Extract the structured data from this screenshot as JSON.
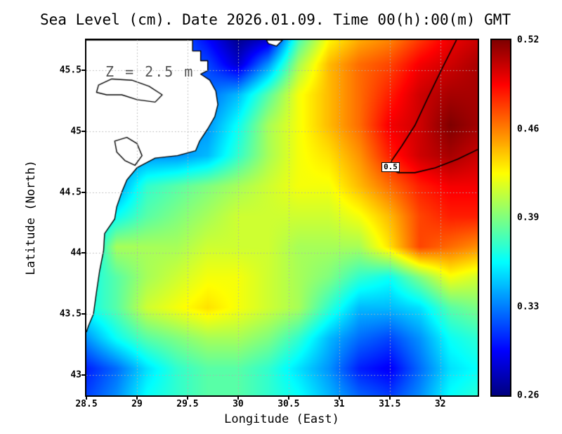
{
  "chart_data": {
    "type": "heatmap",
    "title": "Sea Level (cm). Date 2026.01.09. Time 00(h):00(m) GMT",
    "xlabel": "Longitude (East)",
    "ylabel": "Latitude (North)",
    "annotation": "Z = 2.5 m",
    "units": "cm",
    "grid": true,
    "lon_range": [
      28.5,
      32.37
    ],
    "lat_range": [
      42.83,
      45.75
    ],
    "value_range": [
      0.26,
      0.52
    ],
    "x_ticks": {
      "labels": [
        "28.5",
        "29",
        "29.5",
        "30",
        "30.5",
        "31",
        "31.5",
        "32"
      ],
      "values": [
        28.5,
        29,
        29.5,
        30,
        30.5,
        31,
        31.5,
        32
      ]
    },
    "y_ticks": {
      "labels": [
        "45.5",
        "45",
        "44.5",
        "44",
        "43.5",
        "43"
      ],
      "values": [
        45.5,
        45,
        44.5,
        44,
        43.5,
        43
      ]
    },
    "colorbar": {
      "labels": [
        "0.52",
        "0.46",
        "0.39",
        "0.33",
        "0.26"
      ],
      "min": 0.26,
      "max": 0.52,
      "colormap": "jet",
      "position": "right"
    },
    "lon": [
      28.5,
      28.8,
      29.1,
      29.4,
      29.7,
      30.0,
      30.3,
      30.6,
      30.9,
      31.2,
      31.5,
      31.8,
      32.1,
      32.4
    ],
    "lat": [
      45.8,
      45.55,
      45.3,
      45.05,
      44.8,
      44.55,
      44.3,
      44.05,
      43.8,
      43.55,
      43.3,
      43.05,
      42.8
    ],
    "values": [
      [
        0.33,
        0.33,
        0.33,
        0.32,
        0.29,
        0.26,
        0.27,
        0.37,
        0.42,
        0.44,
        0.45,
        0.47,
        0.49,
        0.5
      ],
      [
        0.33,
        0.33,
        0.33,
        0.32,
        0.31,
        0.28,
        0.33,
        0.4,
        0.44,
        0.46,
        0.47,
        0.49,
        0.5,
        0.51
      ],
      [
        0.33,
        0.33,
        0.33,
        0.33,
        0.32,
        0.34,
        0.38,
        0.42,
        0.44,
        0.46,
        0.48,
        0.5,
        0.51,
        0.51
      ],
      [
        0.33,
        0.33,
        0.33,
        0.33,
        0.33,
        0.36,
        0.4,
        0.42,
        0.44,
        0.46,
        0.49,
        0.5,
        0.52,
        0.51
      ],
      [
        0.33,
        0.33,
        0.33,
        0.33,
        0.34,
        0.37,
        0.4,
        0.42,
        0.43,
        0.45,
        0.48,
        0.5,
        0.51,
        0.5
      ],
      [
        0.33,
        0.33,
        0.37,
        0.38,
        0.39,
        0.4,
        0.41,
        0.42,
        0.42,
        0.44,
        0.46,
        0.48,
        0.49,
        0.49
      ],
      [
        0.34,
        0.36,
        0.38,
        0.39,
        0.4,
        0.41,
        0.41,
        0.41,
        0.41,
        0.42,
        0.44,
        0.47,
        0.48,
        0.48
      ],
      [
        0.34,
        0.4,
        0.4,
        0.4,
        0.41,
        0.41,
        0.41,
        0.4,
        0.4,
        0.4,
        0.43,
        0.47,
        0.46,
        0.45
      ],
      [
        0.36,
        0.38,
        0.4,
        0.41,
        0.42,
        0.42,
        0.41,
        0.4,
        0.39,
        0.37,
        0.36,
        0.39,
        0.42,
        0.41
      ],
      [
        0.36,
        0.38,
        0.41,
        0.42,
        0.43,
        0.42,
        0.41,
        0.4,
        0.37,
        0.34,
        0.34,
        0.35,
        0.38,
        0.39
      ],
      [
        0.33,
        0.36,
        0.38,
        0.39,
        0.4,
        0.4,
        0.39,
        0.37,
        0.34,
        0.32,
        0.31,
        0.33,
        0.36,
        0.37
      ],
      [
        0.3,
        0.32,
        0.35,
        0.37,
        0.38,
        0.38,
        0.37,
        0.35,
        0.33,
        0.3,
        0.29,
        0.32,
        0.35,
        0.36
      ],
      [
        0.31,
        0.33,
        0.36,
        0.37,
        0.38,
        0.38,
        0.37,
        0.36,
        0.34,
        0.32,
        0.31,
        0.33,
        0.36,
        0.37
      ]
    ],
    "contour": {
      "label": "0.5",
      "path": [
        [
          32.16,
          45.75
        ],
        [
          32.02,
          45.52
        ],
        [
          31.88,
          45.28
        ],
        [
          31.75,
          45.05
        ],
        [
          31.62,
          44.88
        ],
        [
          31.52,
          44.76
        ],
        [
          31.5,
          44.7
        ],
        [
          31.58,
          44.66
        ],
        [
          31.75,
          44.66
        ],
        [
          31.95,
          44.7
        ],
        [
          32.17,
          44.77
        ],
        [
          32.37,
          44.85
        ]
      ]
    },
    "coastline": [
      [
        28.5,
        45.75
      ],
      [
        29.55,
        45.75
      ],
      [
        29.55,
        45.66
      ],
      [
        29.63,
        45.66
      ],
      [
        29.63,
        45.58
      ],
      [
        29.7,
        45.58
      ],
      [
        29.7,
        45.5
      ],
      [
        29.63,
        45.47
      ],
      [
        29.72,
        45.42
      ],
      [
        29.78,
        45.33
      ],
      [
        29.8,
        45.22
      ],
      [
        29.77,
        45.12
      ],
      [
        29.7,
        45.02
      ],
      [
        29.62,
        44.92
      ],
      [
        29.58,
        44.84
      ],
      [
        29.4,
        44.8
      ],
      [
        29.18,
        44.78
      ],
      [
        29.0,
        44.7
      ],
      [
        28.9,
        44.6
      ],
      [
        28.85,
        44.5
      ],
      [
        28.8,
        44.38
      ],
      [
        28.78,
        44.28
      ],
      [
        28.68,
        44.16
      ],
      [
        28.67,
        44.02
      ],
      [
        28.63,
        43.85
      ],
      [
        28.6,
        43.68
      ],
      [
        28.57,
        43.5
      ],
      [
        28.52,
        43.4
      ],
      [
        28.5,
        43.35
      ]
    ],
    "islet": [
      [
        30.28,
        45.75
      ],
      [
        30.44,
        45.75
      ],
      [
        30.38,
        45.7
      ],
      [
        30.3,
        45.72
      ]
    ],
    "lakes": [
      [
        [
          28.62,
          45.38
        ],
        [
          28.75,
          45.43
        ],
        [
          28.95,
          45.42
        ],
        [
          29.12,
          45.37
        ],
        [
          29.25,
          45.3
        ],
        [
          29.18,
          45.24
        ],
        [
          29.0,
          45.26
        ],
        [
          28.85,
          45.3
        ],
        [
          28.7,
          45.3
        ],
        [
          28.6,
          45.32
        ]
      ],
      [
        [
          28.78,
          44.92
        ],
        [
          28.9,
          44.95
        ],
        [
          29.0,
          44.9
        ],
        [
          29.05,
          44.8
        ],
        [
          28.98,
          44.72
        ],
        [
          28.88,
          44.76
        ],
        [
          28.8,
          44.83
        ]
      ]
    ]
  }
}
